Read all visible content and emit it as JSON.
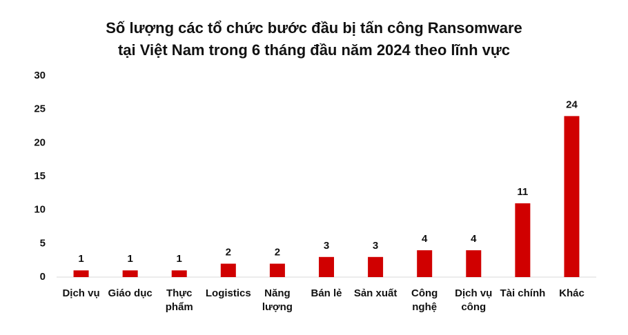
{
  "chart_data": {
    "type": "bar",
    "title": [
      "Số lượng các tổ chức bước đầu bị tấn công Ransomware",
      "tại Việt Nam trong 6 tháng đầu năm 2024 theo lĩnh vực"
    ],
    "categories": [
      "Dịch vụ",
      "Giáo dục",
      "Thực phẩm",
      "Logistics",
      "Năng lượng",
      "Bán lẻ",
      "Sản xuất",
      "Công nghệ",
      "Dịch vụ công",
      "Tài chính",
      "Khác"
    ],
    "values": [
      1,
      1,
      1,
      2,
      2,
      3,
      3,
      4,
      4,
      11,
      24
    ],
    "color": "#d00000",
    "ylim": [
      0,
      30
    ],
    "yticks": [
      0,
      5,
      10,
      15,
      20,
      25,
      30
    ],
    "grid": false
  }
}
